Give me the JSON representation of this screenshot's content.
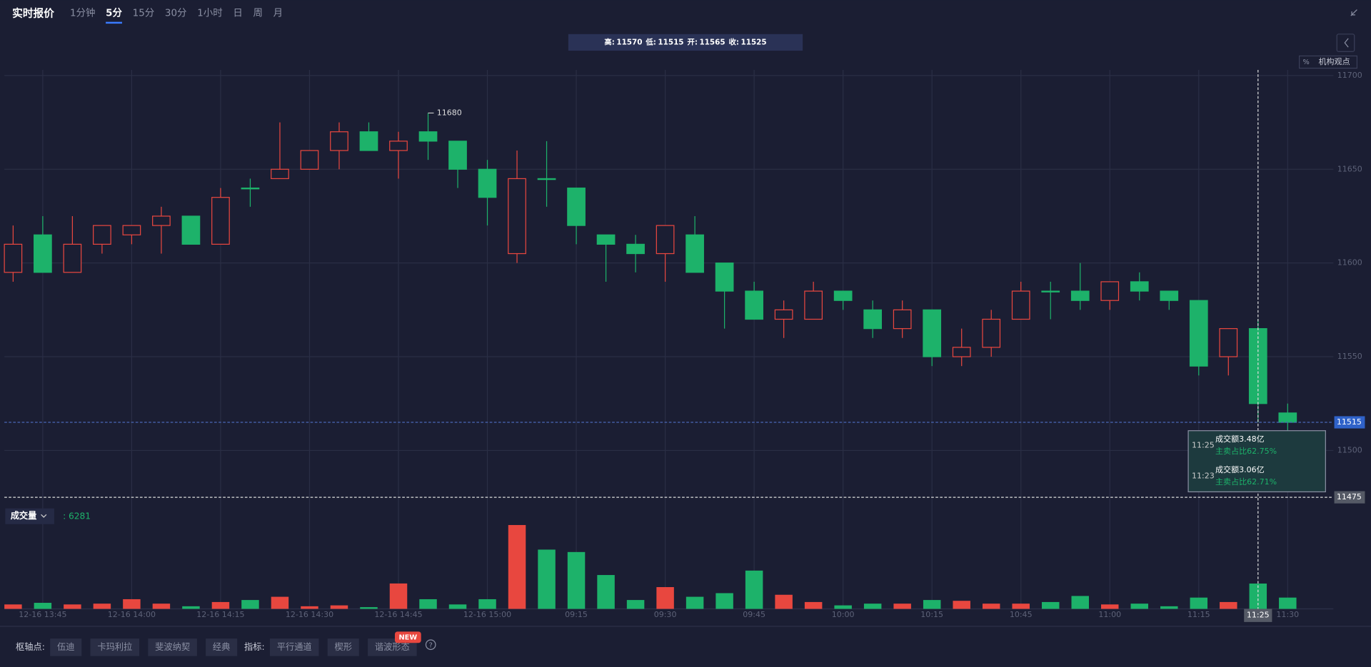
{
  "toolbar": {
    "title": "实时报价",
    "periods": [
      "1分钟",
      "5分",
      "15分",
      "30分",
      "1小时",
      "日",
      "周",
      "月"
    ],
    "active_period": "5分"
  },
  "ohlc_bar": {
    "labels": [
      "高:",
      "低:",
      "开:",
      "收:"
    ]
  },
  "side_tags": {
    "percent": "%",
    "views": "机构观点"
  },
  "volume_legend": {
    "name": "成交量",
    "separator": ":"
  },
  "chart_data": {
    "type": "candlestick",
    "categories": [
      null,
      "12-16 13:45",
      null,
      null,
      "12-16 14:00",
      null,
      null,
      "12-16 14:15",
      null,
      null,
      "12-16 14:30",
      null,
      null,
      "12-16 14:45",
      null,
      null,
      "12-16 15:00",
      null,
      null,
      "09:15",
      null,
      null,
      "09:30",
      null,
      null,
      "09:45",
      null,
      null,
      "10:00",
      null,
      null,
      "10:15",
      null,
      null,
      "10:45",
      null,
      null,
      "11:00",
      null,
      null,
      "11:15",
      null,
      "11:25",
      "11:30"
    ],
    "open": [
      11595,
      11615,
      11595,
      11610,
      11615,
      11620,
      11625,
      11610,
      11640,
      11645,
      11650,
      11660,
      11670,
      11660,
      11670,
      11665,
      11650,
      11605,
      11645,
      11640,
      11615,
      11610,
      11605,
      11615,
      11600,
      11585,
      11570,
      11570,
      11585,
      11575,
      11565,
      11575,
      11550,
      11555,
      11570,
      11585,
      11585,
      11580,
      11590,
      11585,
      11580,
      11550,
      11565,
      11520
    ],
    "high": [
      11620,
      11625,
      11625,
      11620,
      11620,
      11630,
      11625,
      11640,
      11645,
      11675,
      11660,
      11675,
      11675,
      11670,
      11680,
      11665,
      11655,
      11660,
      11665,
      11640,
      11615,
      11615,
      11620,
      11625,
      11600,
      11590,
      11580,
      11590,
      11585,
      11580,
      11580,
      11575,
      11565,
      11575,
      11590,
      11590,
      11600,
      11590,
      11595,
      11585,
      11580,
      11565,
      11570,
      11525
    ],
    "low": [
      11590,
      11595,
      11595,
      11605,
      11610,
      11605,
      11610,
      11610,
      11630,
      11645,
      11650,
      11650,
      11660,
      11645,
      11655,
      11640,
      11620,
      11600,
      11630,
      11610,
      11590,
      11595,
      11590,
      11595,
      11565,
      11570,
      11560,
      11570,
      11575,
      11560,
      11560,
      11545,
      11545,
      11550,
      11570,
      11570,
      11575,
      11575,
      11580,
      11575,
      11540,
      11540,
      11515,
      11510
    ],
    "close": [
      11610,
      11595,
      11610,
      11620,
      11620,
      11625,
      11610,
      11635,
      11640,
      11650,
      11660,
      11670,
      11660,
      11665,
      11665,
      11650,
      11635,
      11645,
      11645,
      11620,
      11610,
      11605,
      11620,
      11595,
      11585,
      11570,
      11575,
      11585,
      11580,
      11565,
      11575,
      11550,
      11555,
      11570,
      11585,
      11585,
      11580,
      11590,
      11585,
      11580,
      11545,
      11565,
      11525,
      11515
    ],
    "volume": [
      1100,
      1500,
      1100,
      1300,
      2400,
      1300,
      650,
      1700,
      2200,
      3000,
      650,
      870,
      430,
      6300,
      2400,
      1100,
      2400,
      20800,
      14700,
      14100,
      8400,
      2200,
      5400,
      3000,
      3900,
      9500,
      3500,
      1700,
      870,
      1300,
      1300,
      2200,
      2000,
      1300,
      1300,
      1700,
      3200,
      1100,
      1300,
      650,
      2800,
      1700,
      6281,
      2800
    ],
    "up_color": "#e8473f",
    "down_color": "#1db26a",
    "ylim": [
      11470,
      11703
    ],
    "yticks": [
      11500,
      11550,
      11600,
      11650,
      11700
    ],
    "grid": true,
    "crosshair": {
      "time": "11:25",
      "price": 11475
    },
    "tooltip": [
      {
        "time": "11:25",
        "amount": "成交额3.48亿",
        "ratio": "主卖占比62.75%"
      },
      {
        "time": "11:23",
        "amount": "成交额3.06亿",
        "ratio": "主卖占比62.71%"
      }
    ]
  },
  "footer": {
    "pivot_label": "枢轴点:",
    "pivots": [
      "伍迪",
      "卡玛利拉",
      "斐波纳契",
      "经典"
    ],
    "indicator_label": "指标:",
    "indicators": [
      "平行通道",
      "楔形",
      "谐波形态"
    ],
    "badge": "NEW",
    "help": "?"
  }
}
